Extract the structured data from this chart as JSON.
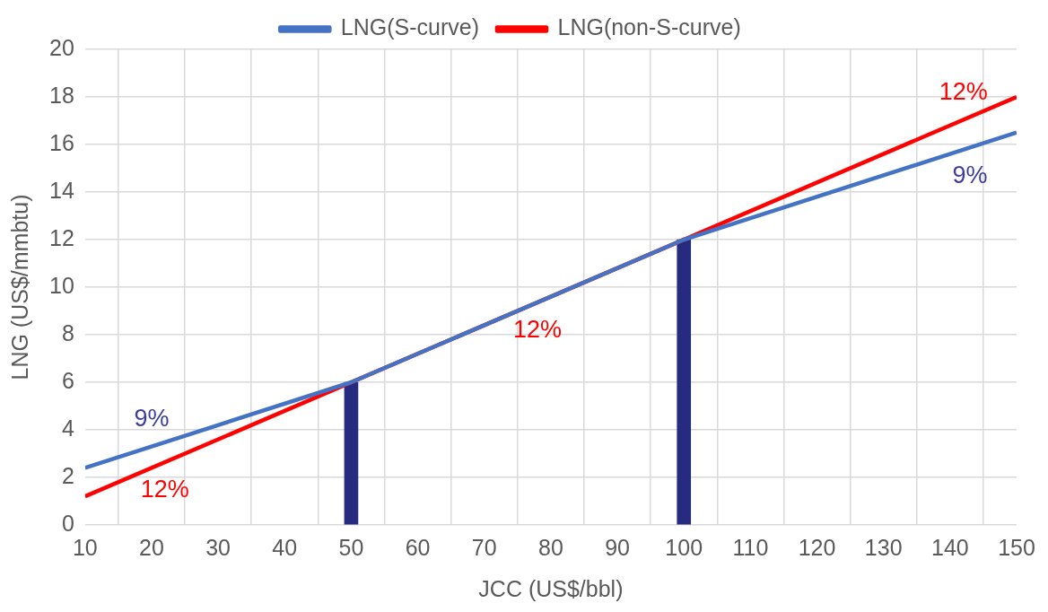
{
  "chart_data": {
    "type": "line",
    "xlabel": "JCC (US$/bbl)",
    "ylabel": "LNG (US$/mmbtu)",
    "xlim": [
      10,
      150
    ],
    "xticks": [
      10,
      20,
      30,
      40,
      50,
      60,
      70,
      80,
      90,
      100,
      110,
      120,
      130,
      140,
      150
    ],
    "ylim": [
      0,
      20
    ],
    "yticks": [
      0,
      2,
      4,
      6,
      8,
      10,
      12,
      14,
      16,
      18,
      20
    ],
    "grid": true,
    "legend": "top",
    "marker": "none",
    "line_style": "solid",
    "series": [
      {
        "type": "bar",
        "color": "#262b80",
        "x": [
          50,
          100
        ],
        "values": [
          6,
          12
        ]
      },
      {
        "name": "LNG(S-curve)",
        "color": "#4472c4",
        "x": [
          10,
          50,
          100,
          150
        ],
        "values": [
          2.4,
          6,
          12,
          16.5
        ]
      },
      {
        "name": "LNG(non-S-curve)",
        "color": "#ff0000",
        "x": [
          10,
          150
        ],
        "values": [
          1.2,
          18
        ]
      }
    ],
    "annotations": [
      {
        "text": "9%",
        "x": 20,
        "y": 3.3
      },
      {
        "text": "12%",
        "x": 22,
        "y": 2.64
      },
      {
        "text": "12%",
        "x": 78,
        "y": 9.36
      },
      {
        "text": "12%",
        "x": 142,
        "y": 17.04
      },
      {
        "text": "9%",
        "x": 143,
        "y": 15.87
      }
    ]
  }
}
